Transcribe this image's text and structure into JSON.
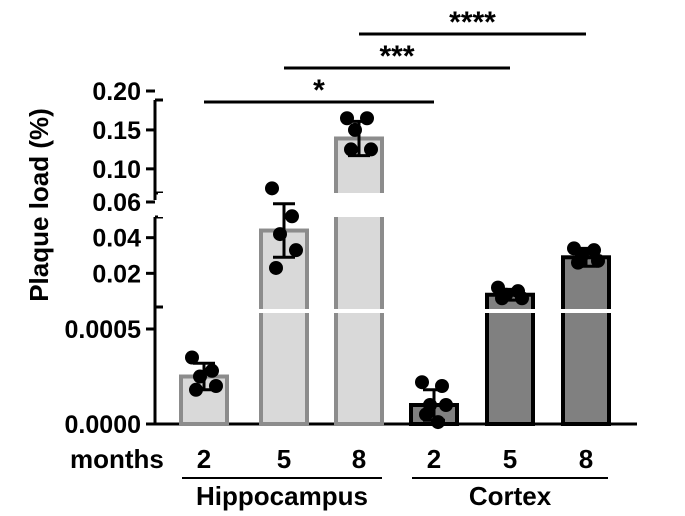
{
  "chart_data": {
    "type": "bar",
    "ylabel": "Plaque load (%)",
    "x_prefix_label": "months",
    "groups": [
      {
        "name": "Hippocampus",
        "fill": "#d9d9d9",
        "edge": "#8c8c8c"
      },
      {
        "name": "Cortex",
        "fill": "#808080",
        "edge": "#000000"
      }
    ],
    "categories": [
      "2",
      "5",
      "8",
      "2",
      "5",
      "8"
    ],
    "bar_group": [
      0,
      0,
      0,
      1,
      1,
      1
    ],
    "values": [
      0.00025,
      0.044,
      0.139,
      0.0001,
      0.008,
      0.029
    ],
    "errors": [
      7e-05,
      0.015,
      0.022,
      8e-05,
      0.003,
      0.005
    ],
    "points": [
      [
        0.00035,
        0.00028,
        0.00025,
        0.0002,
        0.00018
      ],
      [
        0.075,
        0.052,
        0.042,
        0.033,
        0.023
      ],
      [
        0.165,
        0.165,
        0.15,
        0.125,
        0.125
      ],
      [
        0.00022,
        0.0002,
        0.0001,
        0.0001,
        5e-05,
        1e-05
      ],
      [
        0.012,
        0.01,
        0.008,
        0.006,
        0.006
      ],
      [
        0.034,
        0.033,
        0.03,
        0.027,
        0.026
      ]
    ],
    "y_segments": [
      {
        "range": [
          0,
          0.0006
        ],
        "ticks": [
          "0.0000",
          "0.0005"
        ],
        "tick_values": [
          0,
          0.0005
        ]
      },
      {
        "range": [
          0,
          0.06
        ],
        "ticks": [
          "0.02",
          "0.04",
          "0.06"
        ],
        "tick_values": [
          0.02,
          0.04,
          0.06
        ]
      },
      {
        "range": [
          0.06,
          0.2
        ],
        "ticks": [
          "0.10",
          "0.15",
          "0.20"
        ],
        "tick_values": [
          0.1,
          0.15,
          0.2
        ]
      }
    ],
    "significance": [
      {
        "label": "*",
        "from": 0,
        "to": 3
      },
      {
        "label": "***",
        "from": 1,
        "to": 4
      },
      {
        "label": "****",
        "from": 2,
        "to": 5
      }
    ]
  }
}
